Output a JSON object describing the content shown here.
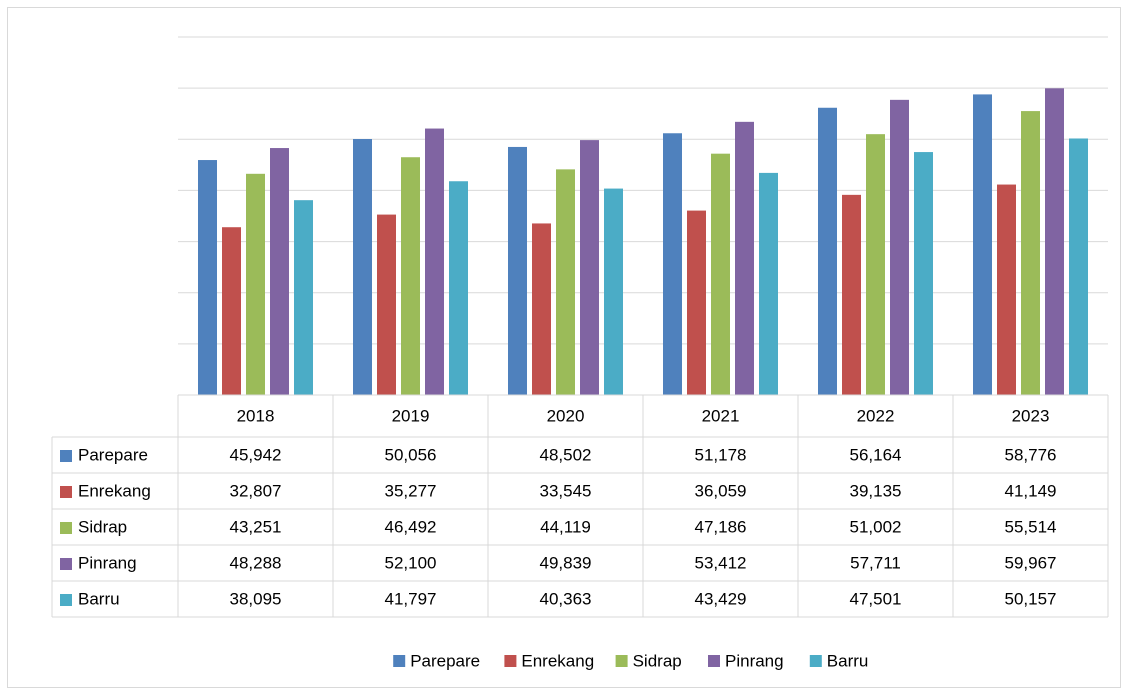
{
  "chart_data": {
    "type": "bar",
    "categories": [
      "2018",
      "2019",
      "2020",
      "2021",
      "2022",
      "2023"
    ],
    "series": [
      {
        "name": "Parepare",
        "color": "#4f81bd",
        "values": [
          45942,
          50056,
          48502,
          51178,
          56164,
          58776
        ],
        "value_labels": [
          "45,942",
          "50,056",
          "48,502",
          "51,178",
          "56,164",
          "58,776"
        ]
      },
      {
        "name": "Enrekang",
        "color": "#c0504d",
        "values": [
          32807,
          35277,
          33545,
          36059,
          39135,
          41149
        ],
        "value_labels": [
          "32,807",
          "35,277",
          "33,545",
          "36,059",
          "39,135",
          "41,149"
        ]
      },
      {
        "name": "Sidrap",
        "color": "#9bbb59",
        "values": [
          43251,
          46492,
          44119,
          47186,
          51002,
          55514
        ],
        "value_labels": [
          "43,251",
          "46,492",
          "44,119",
          "47,186",
          "51,002",
          "55,514"
        ]
      },
      {
        "name": "Pinrang",
        "color": "#8064a2",
        "values": [
          48288,
          52100,
          49839,
          53412,
          57711,
          59967
        ],
        "value_labels": [
          "48,288",
          "52,100",
          "49,839",
          "53,412",
          "57,711",
          "59,967"
        ]
      },
      {
        "name": "Barru",
        "color": "#4bacc6",
        "values": [
          38095,
          41797,
          40363,
          43429,
          47501,
          50157
        ],
        "value_labels": [
          "38,095",
          "41,797",
          "40,363",
          "43,429",
          "47,501",
          "50,157"
        ]
      }
    ],
    "ylim": [
      0,
      70000
    ],
    "yticks": [
      0,
      10000,
      20000,
      30000,
      40000,
      50000,
      60000,
      70000
    ],
    "grid": true,
    "legend": "bottom"
  }
}
